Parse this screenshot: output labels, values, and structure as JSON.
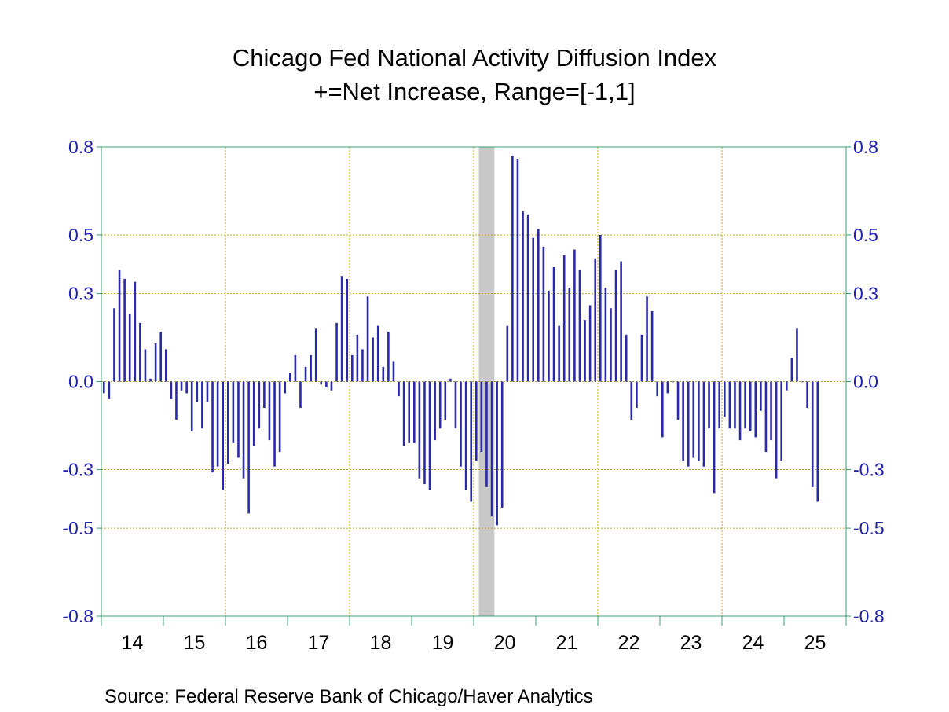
{
  "chart_data": {
    "type": "bar",
    "title": "Chicago Fed National Activity Diffusion Index",
    "subtitle": "+=Net Increase, Range=[-1,1]",
    "source": "Source:  Federal Reserve Bank of Chicago/Haver Analytics",
    "ylim": [
      -0.8,
      0.8
    ],
    "y_ticks": [
      0.8,
      0.5,
      0.3,
      0.0,
      -0.3,
      -0.5,
      -0.8
    ],
    "y_tick_labels": [
      "0.8",
      "0.5",
      "0.3",
      "0.0",
      "-0.3",
      "-0.5",
      "-0.8"
    ],
    "x_tick_labels": [
      "14",
      "15",
      "16",
      "17",
      "18",
      "19",
      "20",
      "21",
      "22",
      "23",
      "24",
      "25"
    ],
    "x_start": "2014-01",
    "grid": true,
    "recession_shading": {
      "start": "2020-02",
      "end": "2020-04",
      "color": "#c8c8c8"
    },
    "bar_color": "#2a2aa8",
    "series": [
      {
        "values": [
          -0.04,
          -0.06,
          0.25,
          0.38,
          0.35,
          0.23,
          0.34,
          0.2,
          0.11,
          0.01,
          0.13,
          0.17,
          0.11,
          -0.06,
          -0.13,
          -0.03,
          -0.04,
          -0.17,
          -0.07,
          -0.16,
          -0.07,
          -0.31,
          -0.29,
          -0.37,
          -0.28,
          -0.21,
          -0.26,
          -0.33,
          -0.45,
          -0.22,
          -0.16,
          -0.09,
          -0.2,
          -0.29,
          -0.24,
          -0.04,
          0.03,
          0.09,
          -0.09,
          0.05,
          0.09,
          0.18,
          -0.01,
          -0.02,
          -0.03,
          0.2,
          0.36,
          0.35,
          0.09,
          0.16,
          0.11,
          0.29,
          0.15,
          0.19,
          0.05,
          0.17,
          0.07,
          -0.05,
          -0.22,
          -0.21,
          -0.21,
          -0.33,
          -0.35,
          -0.37,
          -0.2,
          -0.16,
          -0.13,
          0.01,
          -0.16,
          -0.29,
          -0.37,
          -0.41,
          -0.27,
          -0.24,
          -0.36,
          -0.46,
          -0.49,
          -0.43,
          0.19,
          0.77,
          0.76,
          0.58,
          0.57,
          0.49,
          0.52,
          0.46,
          0.31,
          0.39,
          0.19,
          0.43,
          0.32,
          0.45,
          0.38,
          0.21,
          0.26,
          0.42,
          0.5,
          0.32,
          0.25,
          0.38,
          0.41,
          0.16,
          -0.13,
          -0.09,
          0.16,
          0.29,
          0.24,
          -0.05,
          -0.19,
          -0.04,
          0.0,
          -0.13,
          -0.27,
          -0.29,
          -0.26,
          -0.27,
          -0.29,
          -0.16,
          -0.38,
          -0.16,
          -0.12,
          -0.16,
          -0.16,
          -0.2,
          -0.16,
          -0.17,
          -0.19,
          -0.1,
          -0.24,
          -0.2,
          -0.33,
          -0.27,
          -0.03,
          0.08,
          0.18,
          0.0,
          -0.09,
          -0.36,
          -0.41
        ]
      }
    ]
  }
}
